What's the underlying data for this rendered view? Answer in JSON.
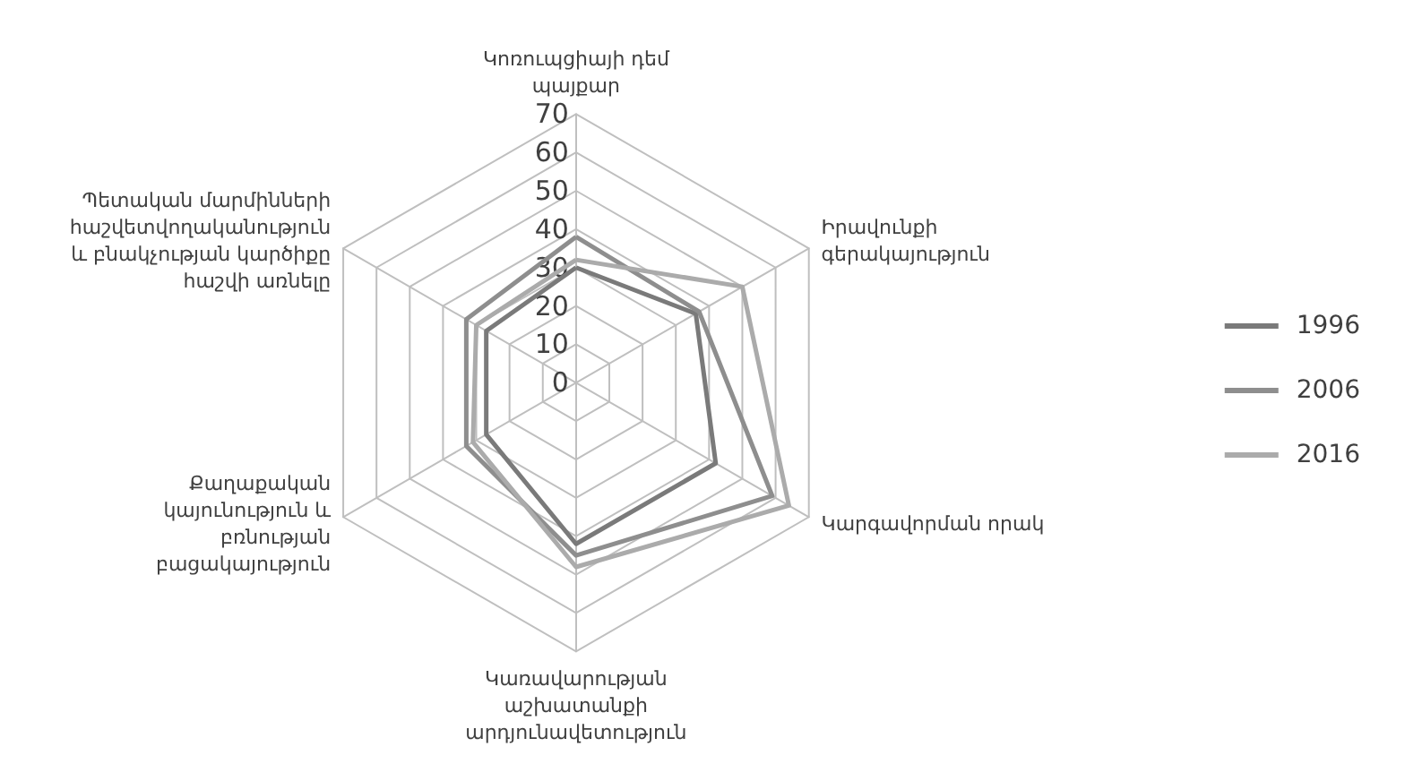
{
  "chart_data": {
    "type": "radar",
    "categories": [
      "Կոռուպցիայի դեմ պայքար",
      "Իրավունքի գերակայություն",
      "Կարգավորման որակ",
      "Կառավարության աշխատանքի արդյունավետություն",
      "Քաղաքական կայունություն և բռնության բացակայություն",
      "Պետական մարմինների հաշվետվողականություն և բնակչության կարծիքը հաշվի առնելը"
    ],
    "series": [
      {
        "name": "1996",
        "color": "#7a7a7a",
        "values": [
          30,
          36,
          42,
          42,
          27,
          27
        ]
      },
      {
        "name": "2006",
        "color": "#8e8e8e",
        "values": [
          38,
          37,
          59,
          45,
          33,
          33
        ]
      },
      {
        "name": "2016",
        "color": "#ababab",
        "values": [
          32,
          50,
          64,
          48,
          31,
          30
        ]
      }
    ],
    "ylim": [
      0,
      70
    ],
    "yticks": [
      0,
      10,
      20,
      30,
      40,
      50,
      60,
      70
    ],
    "legend": "right",
    "marker": "none",
    "line_style": "solid"
  }
}
